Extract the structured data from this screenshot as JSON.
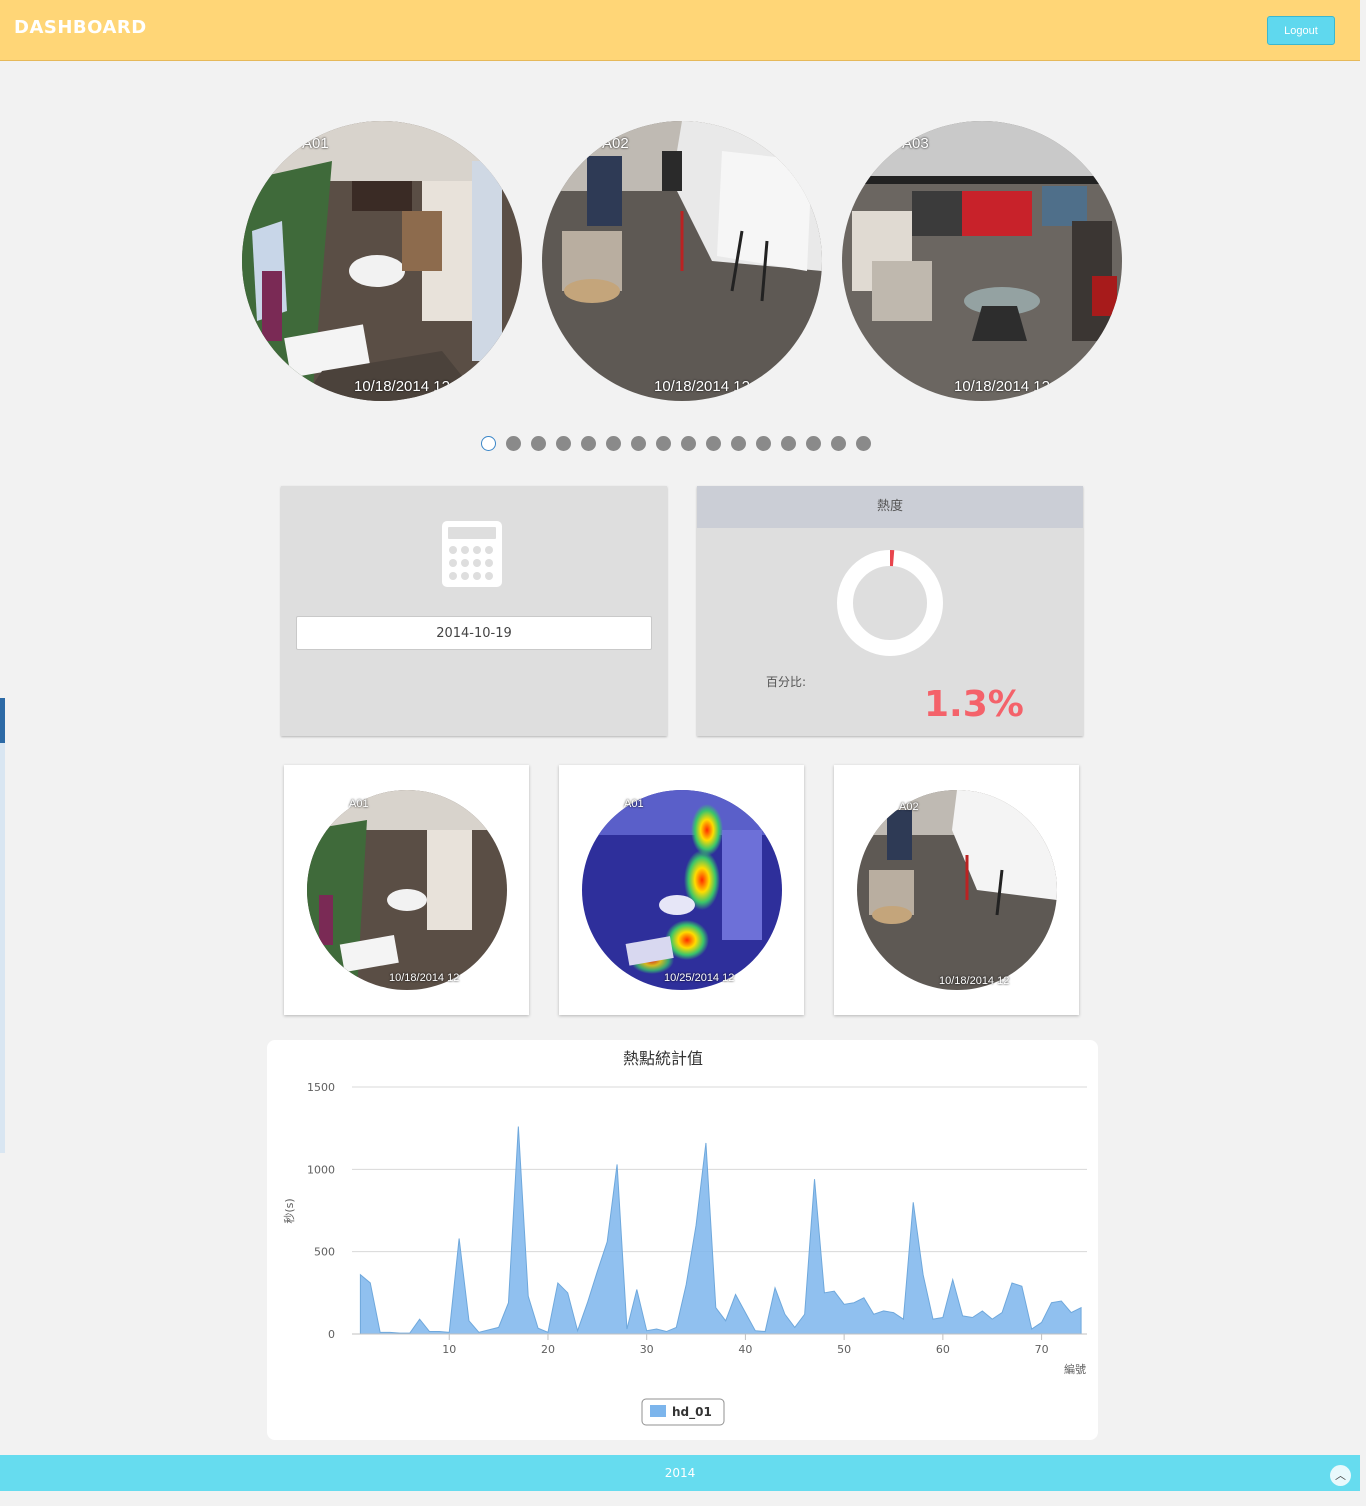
{
  "header": {
    "title": "DASHBOARD",
    "logout_label": "Logout"
  },
  "colors": {
    "header_bg": "#ffd677",
    "accent": "#5fd8ee",
    "percent": "#f4626a",
    "series": "#7cb5ec"
  },
  "carousel": {
    "cameras": [
      {
        "label": "A01",
        "timestamp": "10/18/2014 12"
      },
      {
        "label": "A02",
        "timestamp": "10/18/2014 12"
      },
      {
        "label": "A03",
        "timestamp": "10/18/2014 12"
      }
    ],
    "page_count": 16,
    "active_page": 1
  },
  "date_panel": {
    "icon": "calculator-icon",
    "date_value": "2014-10-19"
  },
  "heat_panel": {
    "title": "熱度",
    "percent_label": "百分比:",
    "percent_value": "1.3%",
    "percent_fraction": 0.013
  },
  "thumbnails": [
    {
      "label": "A01",
      "timestamp": "10/18/2014 12"
    },
    {
      "label": "A01",
      "timestamp": "10/25/2014 12"
    },
    {
      "label": "A02",
      "timestamp": "10/18/2014 12"
    }
  ],
  "chart_data": {
    "type": "area",
    "title": "熱點統計值",
    "xlabel": "編號",
    "ylabel": "秒(s)",
    "ylim": [
      0,
      1500
    ],
    "xlim": [
      1,
      74
    ],
    "yticks": [
      0,
      500,
      1000,
      1500
    ],
    "xticks": [
      10,
      20,
      30,
      40,
      50,
      60,
      70
    ],
    "grid": true,
    "legend_position": "bottom-center",
    "series": [
      {
        "name": "hd_01",
        "x": [
          1,
          2,
          3,
          4,
          5,
          6,
          7,
          8,
          9,
          10,
          11,
          12,
          13,
          14,
          15,
          16,
          17,
          18,
          19,
          20,
          21,
          22,
          23,
          24,
          25,
          26,
          27,
          28,
          29,
          30,
          31,
          32,
          33,
          34,
          35,
          36,
          37,
          38,
          39,
          40,
          41,
          42,
          43,
          44,
          45,
          46,
          47,
          48,
          49,
          50,
          51,
          52,
          53,
          54,
          55,
          56,
          57,
          58,
          59,
          60,
          61,
          62,
          63,
          64,
          65,
          66,
          67,
          68,
          69,
          70,
          71,
          72,
          73,
          74
        ],
        "values": [
          360,
          310,
          10,
          10,
          5,
          5,
          90,
          15,
          15,
          10,
          580,
          80,
          10,
          25,
          40,
          190,
          1260,
          230,
          35,
          10,
          310,
          250,
          20,
          190,
          380,
          560,
          1030,
          30,
          270,
          20,
          30,
          15,
          40,
          300,
          660,
          1160,
          160,
          80,
          240,
          130,
          20,
          15,
          280,
          120,
          40,
          120,
          940,
          250,
          260,
          180,
          190,
          220,
          120,
          140,
          130,
          90,
          800,
          360,
          90,
          100,
          330,
          110,
          100,
          140,
          90,
          130,
          310,
          290,
          30,
          70,
          190,
          200,
          130,
          160
        ]
      }
    ]
  },
  "footer": {
    "text": "2014"
  }
}
